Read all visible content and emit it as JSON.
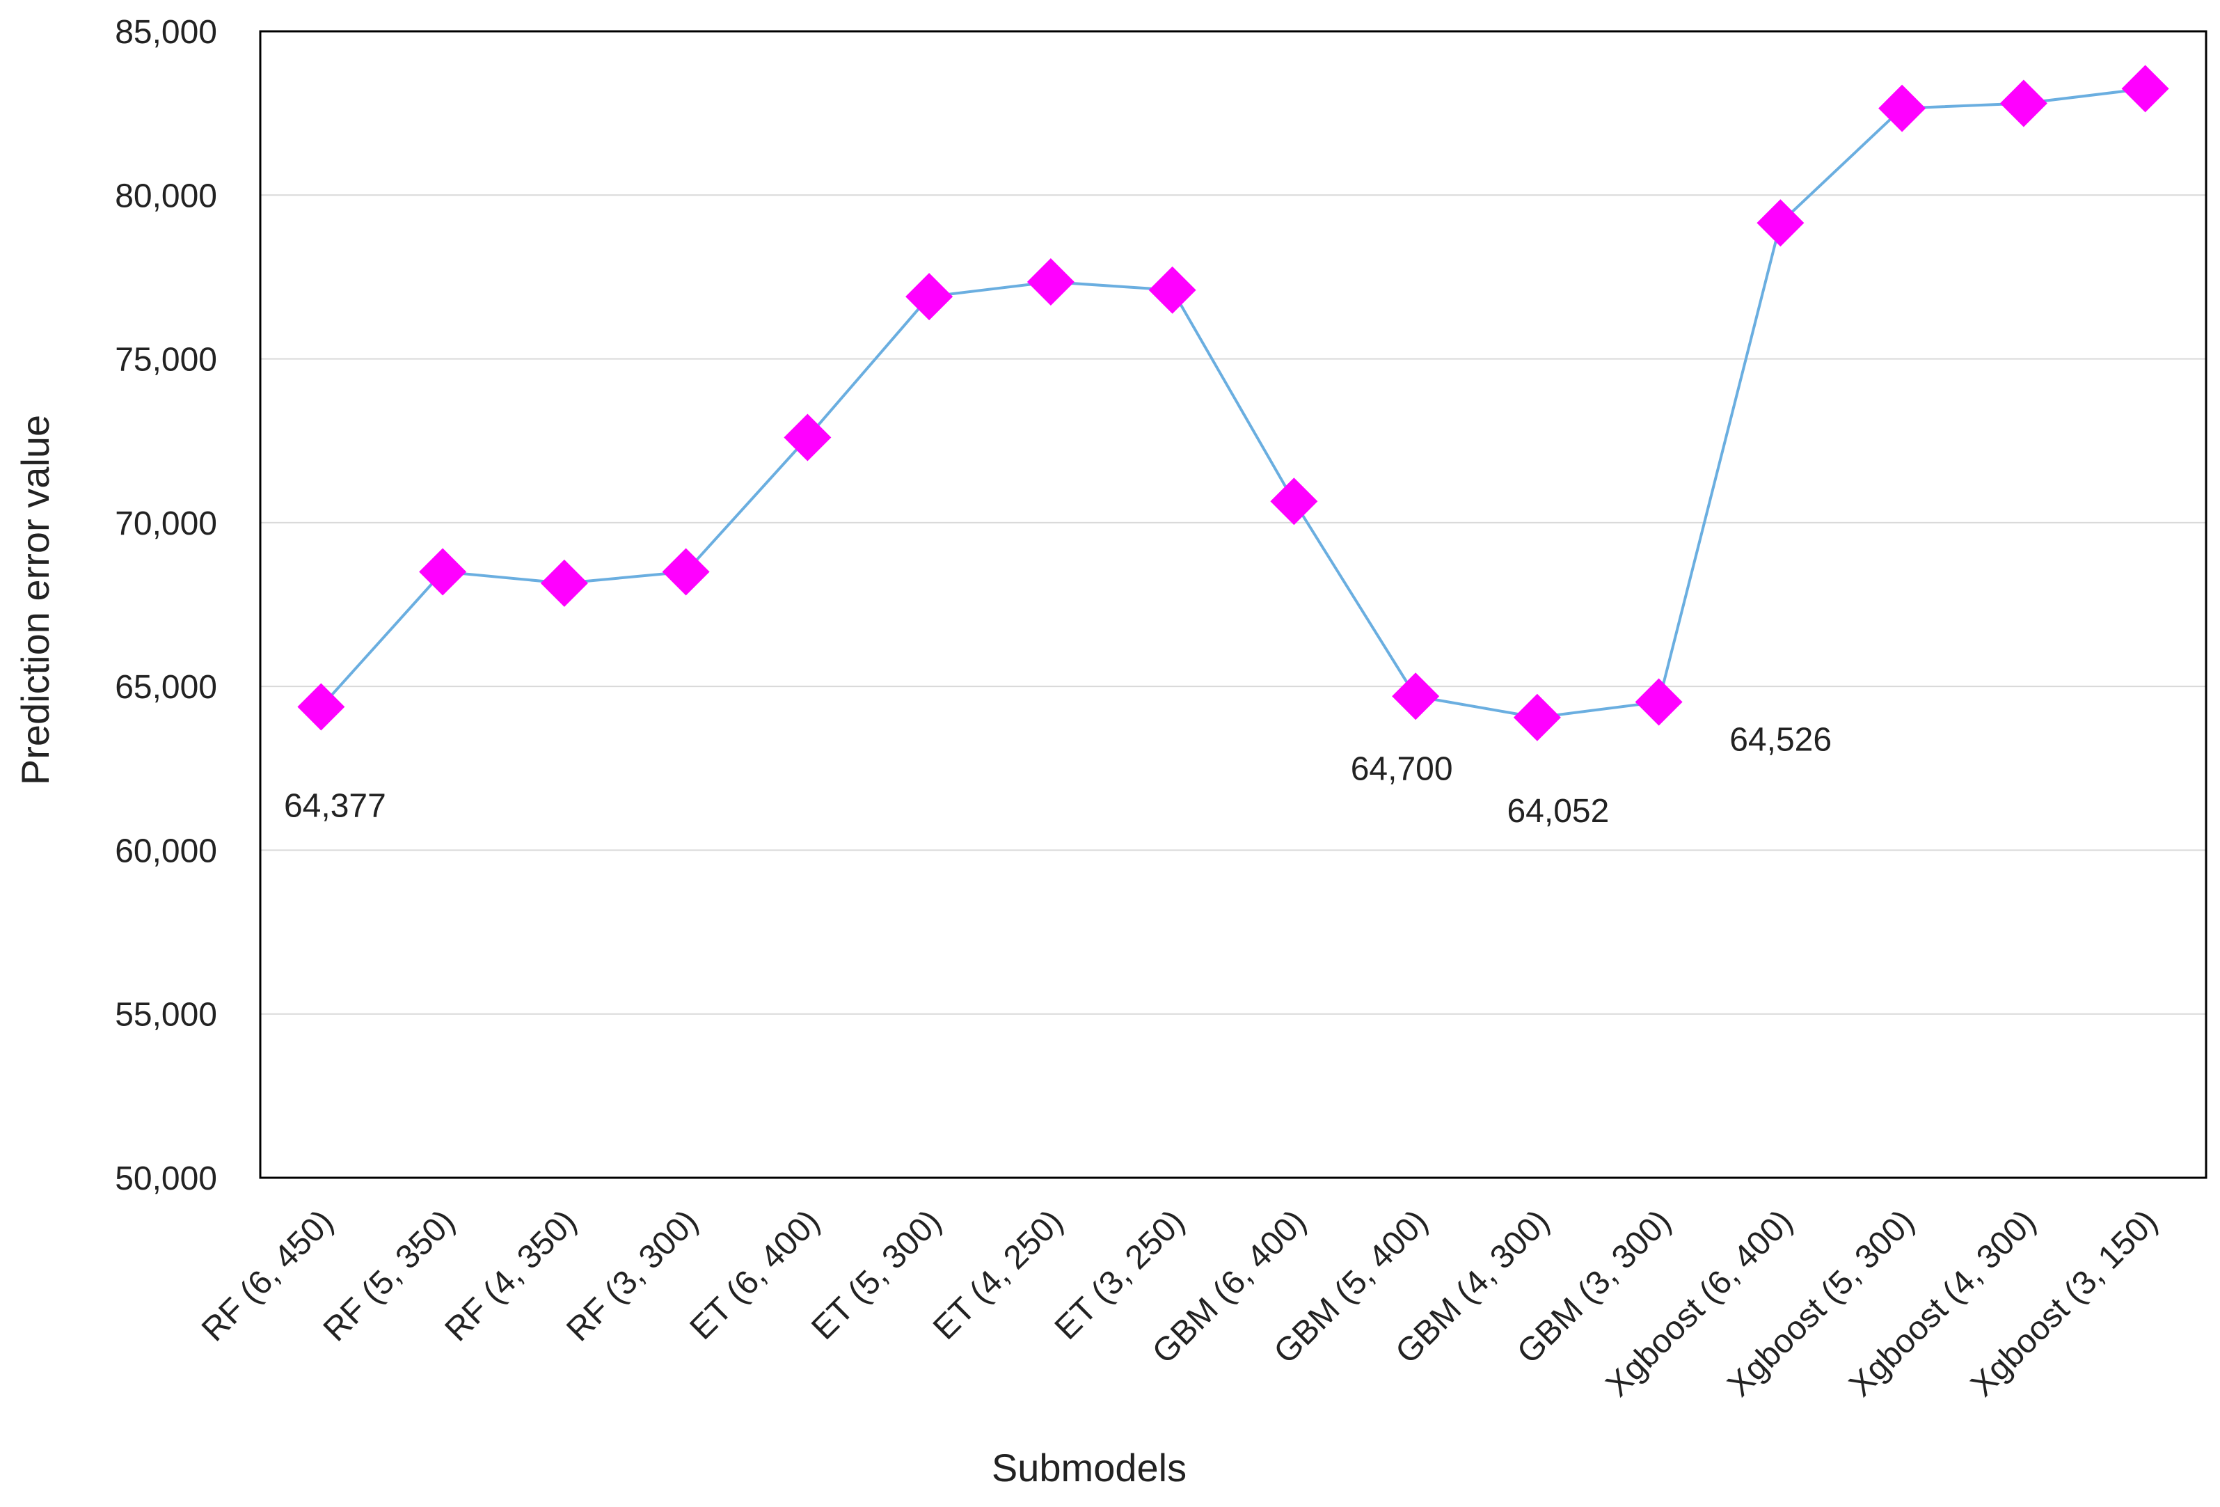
{
  "chart_data": {
    "type": "line",
    "title": "",
    "xlabel": "Submodels",
    "ylabel": "Prediction error value",
    "ylim": [
      50000,
      85000
    ],
    "yticks": [
      50000,
      55000,
      60000,
      65000,
      70000,
      75000,
      80000,
      85000
    ],
    "ytick_labels": [
      "50,000",
      "55,000",
      "60,000",
      "65,000",
      "70,000",
      "75,000",
      "80,000",
      "85,000"
    ],
    "grid": true,
    "legend": "none",
    "categories": [
      "RF (6, 450)",
      "RF (5, 350)",
      "RF (4, 350)",
      "RF (3, 300)",
      "ET (6, 400)",
      "ET (5, 300)",
      "ET (4, 250)",
      "ET (3, 250)",
      "GBM (6, 400)",
      "GBM (5, 400)",
      "GBM (4, 300)",
      "GBM (3, 300)",
      "Xgboost (6, 400)",
      "Xgboost (5, 300)",
      "Xgboost (4, 300)",
      "Xgboost (3, 150)"
    ],
    "series": [
      {
        "values": [
          64377,
          68500,
          68150,
          68500,
          72600,
          76900,
          77350,
          77100,
          70650,
          64700,
          64052,
          64526,
          79150,
          82650,
          82800,
          83250
        ],
        "line_color": "#6aaee0",
        "marker": "diamond",
        "marker_color": "#ff00ff"
      }
    ],
    "annotations": [
      {
        "index": 0,
        "text": "64,377"
      },
      {
        "index": 9,
        "text": "64,700"
      },
      {
        "index": 10,
        "text": "64,052"
      },
      {
        "index": 11,
        "text": "64,526"
      }
    ]
  }
}
